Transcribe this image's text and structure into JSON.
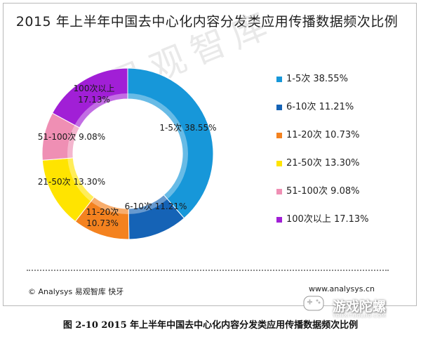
{
  "chart_data": {
    "type": "pie",
    "title": "2015 年上半年中国去中心化内容分发类应用传播数据频次比例",
    "categories": [
      "1-5次",
      "6-10次",
      "11-20次",
      "21-50次",
      "51-100次",
      "100次以上"
    ],
    "values": [
      38.55,
      11.21,
      10.73,
      13.3,
      9.08,
      17.13
    ],
    "unit": "%",
    "donut": true,
    "colors": [
      "#1797d9",
      "#1563b6",
      "#f4821f",
      "#ffe400",
      "#ef8fb4",
      "#a11fd6"
    ],
    "slice_labels": [
      "1-5次 38.55%",
      "6-10次 11.21%",
      "11-20次\n10.73%",
      "21-50次 13.30%",
      "51-100次 9.08%",
      "100次以上\n17.13%"
    ],
    "legend": {
      "position": "right",
      "entries": [
        "1-5次 38.55%",
        "6-10次 11.21%",
        "11-20次 10.73%",
        "21-50次 13.30%",
        "51-100次   9.08%",
        "100次以上 17.13%"
      ]
    }
  },
  "header": {
    "title": "2015 年上半年中国去中心化内容分发类应用传播数据频次比例"
  },
  "watermark": "易观智库",
  "footer": {
    "source": "© Analysys 易观智库  快牙",
    "website": "www.analysys.cn",
    "app_name": "游戏陀螺",
    "app_domain": "YOUXITUOLUO.COM"
  },
  "caption": "图 2-10 2015 年上半年中国去中心化内容分发类应用传播数据频次比例"
}
